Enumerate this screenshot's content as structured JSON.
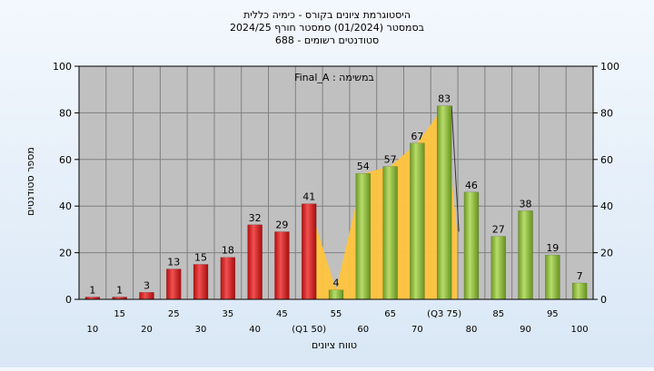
{
  "chart_data": {
    "type": "bar",
    "title_lines": [
      "היסטוגרמת ציונים בקורס - כימיה כללית",
      "בסמסטר  (01/2024)  סמסטר חורף 2024/25",
      "סטודנטים רשומים - 688"
    ],
    "annotation": "במשימה : Final_A",
    "xlabel": "טווח ציונים",
    "ylabel": "מספר סטודנטים",
    "ylim": [
      0,
      100
    ],
    "yticks": [
      0,
      20,
      40,
      60,
      80,
      100
    ],
    "grid": true,
    "categories": [
      "10",
      "15",
      "20",
      "25",
      "30",
      "35",
      "40",
      "45",
      "50",
      "55",
      "60",
      "65",
      "70",
      "75",
      "80",
      "85",
      "90",
      "95",
      "100"
    ],
    "x_tick_labels": [
      "10",
      "15",
      "20",
      "25",
      "30",
      "35",
      "40",
      "45",
      "(Q1 50)",
      "55",
      "60",
      "65",
      "70",
      "(Q3 75)",
      "80",
      "85",
      "90",
      "95",
      "100"
    ],
    "values": [
      1,
      1,
      3,
      13,
      15,
      18,
      32,
      29,
      41,
      4,
      54,
      57,
      67,
      83,
      46,
      27,
      38,
      19,
      7
    ],
    "bar_colors": [
      "red",
      "red",
      "red",
      "red",
      "red",
      "red",
      "red",
      "red",
      "red",
      "green",
      "green",
      "green",
      "green",
      "green",
      "green",
      "green",
      "green",
      "green",
      "green"
    ],
    "interquartile_band": {
      "from": "50",
      "to": "75",
      "color": "#ffc43d"
    },
    "colors": {
      "red": "#d62020",
      "green": "#8cbf3a",
      "plot_bg": "#c0c0c0",
      "grid": "#808080"
    }
  }
}
